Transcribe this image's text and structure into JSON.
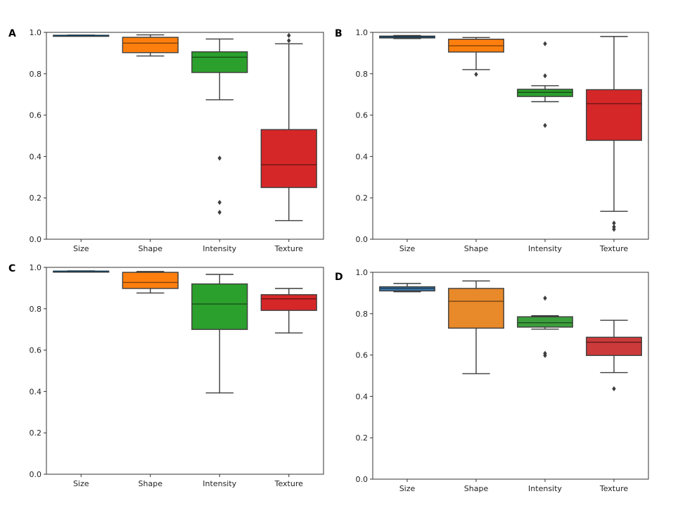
{
  "chart_data": [
    {
      "type": "box",
      "panel": "A",
      "categories": [
        "Size",
        "Shape",
        "Intensity",
        "Texture"
      ],
      "ylim": [
        0.0,
        1.0
      ],
      "yticks": [
        "0.0",
        "0.2",
        "0.4",
        "0.6",
        "0.8",
        "1.0"
      ],
      "grid": false,
      "boxes": [
        {
          "category": "Size",
          "color": "#1f77b4",
          "q1": 0.984,
          "median": 0.985,
          "q3": 0.986,
          "whisker_low": 0.983,
          "whisker_high": 0.987,
          "outliers": []
        },
        {
          "category": "Shape",
          "color": "#ff7f0e",
          "q1": 0.902,
          "median": 0.948,
          "q3": 0.976,
          "whisker_low": 0.886,
          "whisker_high": 0.988,
          "outliers": []
        },
        {
          "category": "Intensity",
          "color": "#2ca02c",
          "q1": 0.806,
          "median": 0.88,
          "q3": 0.906,
          "whisker_low": 0.674,
          "whisker_high": 0.968,
          "outliers": [
            0.392,
            0.178,
            0.13
          ]
        },
        {
          "category": "Texture",
          "color": "#d62728",
          "q1": 0.25,
          "median": 0.36,
          "q3": 0.53,
          "whisker_low": 0.09,
          "whisker_high": 0.945,
          "outliers": [
            0.985,
            0.96
          ]
        }
      ]
    },
    {
      "type": "box",
      "panel": "B",
      "categories": [
        "Size",
        "Shape",
        "Intensity",
        "Texture"
      ],
      "ylim": [
        0.0,
        1.0
      ],
      "yticks": [
        "0.0",
        "0.2",
        "0.4",
        "0.6",
        "0.8",
        "1.0"
      ],
      "grid": false,
      "boxes": [
        {
          "category": "Size",
          "color": "#1f77b4",
          "q1": 0.973,
          "median": 0.978,
          "q3": 0.982,
          "whisker_low": 0.97,
          "whisker_high": 0.985,
          "outliers": []
        },
        {
          "category": "Shape",
          "color": "#ff7f0e",
          "q1": 0.905,
          "median": 0.935,
          "q3": 0.967,
          "whisker_low": 0.82,
          "whisker_high": 0.975,
          "outliers": [
            0.797
          ]
        },
        {
          "category": "Intensity",
          "color": "#2ca02c",
          "q1": 0.69,
          "median": 0.71,
          "q3": 0.725,
          "whisker_low": 0.665,
          "whisker_high": 0.742,
          "outliers": [
            0.945,
            0.79,
            0.55
          ]
        },
        {
          "category": "Texture",
          "color": "#d62728",
          "q1": 0.478,
          "median": 0.655,
          "q3": 0.723,
          "whisker_low": 0.135,
          "whisker_high": 0.98,
          "outliers": [
            0.078,
            0.06,
            0.048
          ]
        }
      ]
    },
    {
      "type": "box",
      "panel": "C",
      "categories": [
        "Size",
        "Shape",
        "Intensity",
        "Texture"
      ],
      "ylim": [
        0.0,
        1.0
      ],
      "yticks": [
        "0.0",
        "0.2",
        "0.4",
        "0.6",
        "0.8",
        "1.0"
      ],
      "grid": false,
      "boxes": [
        {
          "category": "Size",
          "color": "#1f77b4",
          "q1": 0.98,
          "median": 0.981,
          "q3": 0.982,
          "whisker_low": 0.979,
          "whisker_high": 0.983,
          "outliers": []
        },
        {
          "category": "Shape",
          "color": "#ff7f0e",
          "q1": 0.898,
          "median": 0.927,
          "q3": 0.976,
          "whisker_low": 0.876,
          "whisker_high": 0.98,
          "outliers": []
        },
        {
          "category": "Intensity",
          "color": "#2ca02c",
          "q1": 0.7,
          "median": 0.823,
          "q3": 0.92,
          "whisker_low": 0.393,
          "whisker_high": 0.966,
          "outliers": []
        },
        {
          "category": "Texture",
          "color": "#d62728",
          "q1": 0.792,
          "median": 0.848,
          "q3": 0.868,
          "whisker_low": 0.683,
          "whisker_high": 0.898,
          "outliers": []
        }
      ]
    },
    {
      "type": "box",
      "panel": "D",
      "categories": [
        "Size",
        "Shape",
        "Intensity",
        "Texture"
      ],
      "ylim": [
        0.0,
        1.0
      ],
      "yticks": [
        "0.0",
        "0.2",
        "0.4",
        "0.6",
        "0.8",
        "1.0"
      ],
      "grid": false,
      "boxes": [
        {
          "category": "Size",
          "color": "#3a75a8",
          "q1": 0.91,
          "median": 0.923,
          "q3": 0.93,
          "whisker_low": 0.906,
          "whisker_high": 0.946,
          "outliers": []
        },
        {
          "category": "Shape",
          "color": "#e8892a",
          "q1": 0.73,
          "median": 0.86,
          "q3": 0.922,
          "whisker_low": 0.51,
          "whisker_high": 0.958,
          "outliers": []
        },
        {
          "category": "Intensity",
          "color": "#3c9e3c",
          "q1": 0.735,
          "median": 0.756,
          "q3": 0.785,
          "whisker_low": 0.725,
          "whisker_high": 0.79,
          "outliers": [
            0.875,
            0.608,
            0.598
          ]
        },
        {
          "category": "Texture",
          "color": "#cc3a3a",
          "q1": 0.598,
          "median": 0.662,
          "q3": 0.686,
          "whisker_low": 0.515,
          "whisker_high": 0.768,
          "outliers": [
            0.437
          ]
        }
      ]
    }
  ]
}
